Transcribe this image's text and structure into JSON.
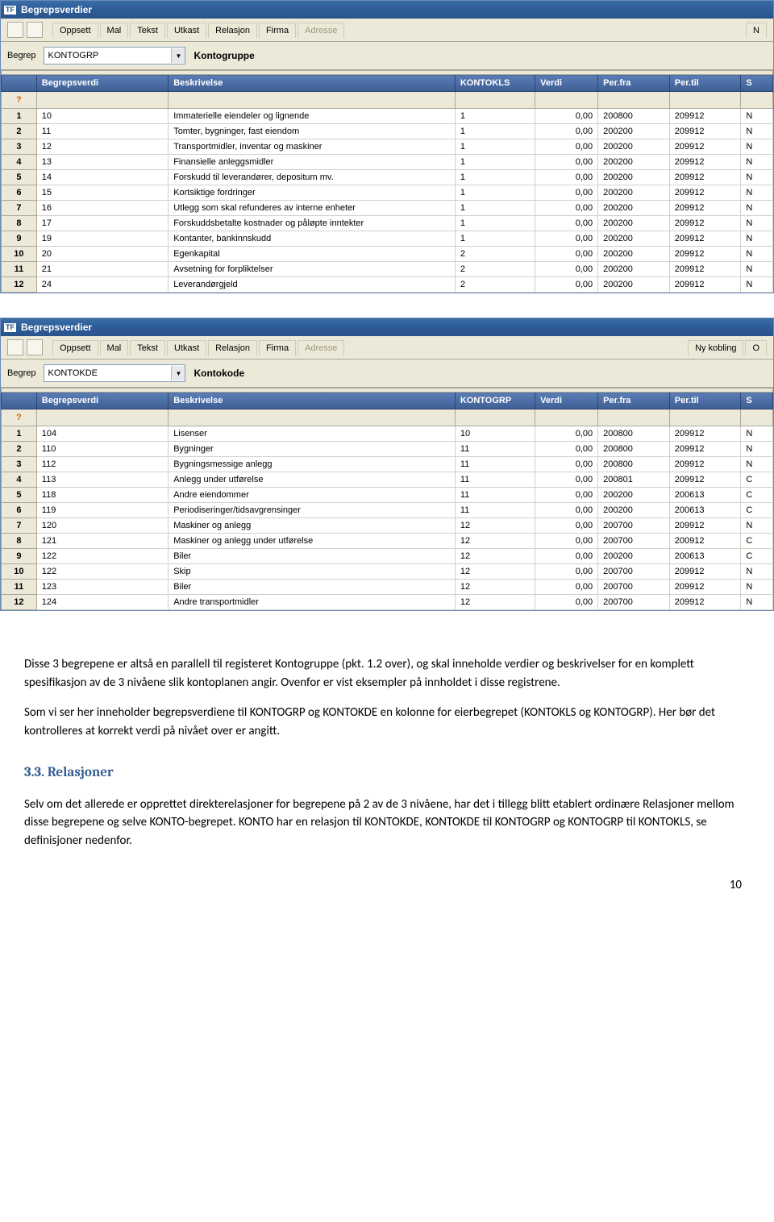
{
  "window1": {
    "title": "Begrepsverdier",
    "tabs": [
      "Oppsett",
      "Mal",
      "Tekst",
      "Utkast",
      "Relasjon",
      "Firma",
      "Adresse"
    ],
    "disabled_tab_index": 6,
    "right_partial": "N",
    "begrep_label": "Begrep",
    "begrep_value": "KONTOGRP",
    "begrep_desc": "Kontogruppe",
    "q_mark": "?",
    "ref_col": "KONTOKLS",
    "headers": [
      "Begrepsverdi",
      "Beskrivelse",
      "KONTOKLS",
      "Verdi",
      "Per.fra",
      "Per.til",
      "S"
    ],
    "rows": [
      {
        "n": "1",
        "bv": "10",
        "besk": "Immaterielle eiendeler og lignende",
        "ref": "1",
        "verdi": "0,00",
        "fra": "200800",
        "til": "209912",
        "s": "N"
      },
      {
        "n": "2",
        "bv": "11",
        "besk": "Tomter, bygninger, fast eiendom",
        "ref": "1",
        "verdi": "0,00",
        "fra": "200200",
        "til": "209912",
        "s": "N"
      },
      {
        "n": "3",
        "bv": "12",
        "besk": "Transportmidler, inventar og maskiner",
        "ref": "1",
        "verdi": "0,00",
        "fra": "200200",
        "til": "209912",
        "s": "N"
      },
      {
        "n": "4",
        "bv": "13",
        "besk": "Finansielle anleggsmidler",
        "ref": "1",
        "verdi": "0,00",
        "fra": "200200",
        "til": "209912",
        "s": "N"
      },
      {
        "n": "5",
        "bv": "14",
        "besk": "Forskudd til leverandører, depositum mv.",
        "ref": "1",
        "verdi": "0,00",
        "fra": "200200",
        "til": "209912",
        "s": "N"
      },
      {
        "n": "6",
        "bv": "15",
        "besk": "Kortsiktige fordringer",
        "ref": "1",
        "verdi": "0,00",
        "fra": "200200",
        "til": "209912",
        "s": "N"
      },
      {
        "n": "7",
        "bv": "16",
        "besk": "Utlegg som skal refunderes av interne enheter",
        "ref": "1",
        "verdi": "0,00",
        "fra": "200200",
        "til": "209912",
        "s": "N"
      },
      {
        "n": "8",
        "bv": "17",
        "besk": "Forskuddsbetalte kostnader og påløpte inntekter",
        "ref": "1",
        "verdi": "0,00",
        "fra": "200200",
        "til": "209912",
        "s": "N"
      },
      {
        "n": "9",
        "bv": "19",
        "besk": "Kontanter, bankinnskudd",
        "ref": "1",
        "verdi": "0,00",
        "fra": "200200",
        "til": "209912",
        "s": "N"
      },
      {
        "n": "10",
        "bv": "20",
        "besk": "Egenkapital",
        "ref": "2",
        "verdi": "0,00",
        "fra": "200200",
        "til": "209912",
        "s": "N"
      },
      {
        "n": "11",
        "bv": "21",
        "besk": "Avsetning for forpliktelser",
        "ref": "2",
        "verdi": "0,00",
        "fra": "200200",
        "til": "209912",
        "s": "N"
      },
      {
        "n": "12",
        "bv": "24",
        "besk": "Leverandørgjeld",
        "ref": "2",
        "verdi": "0,00",
        "fra": "200200",
        "til": "209912",
        "s": "N"
      }
    ]
  },
  "window2": {
    "title": "Begrepsverdier",
    "tabs": [
      "Oppsett",
      "Mal",
      "Tekst",
      "Utkast",
      "Relasjon",
      "Firma",
      "Adresse"
    ],
    "disabled_tab_index": 6,
    "right_tabs": [
      "Ny kobling",
      "O"
    ],
    "begrep_label": "Begrep",
    "begrep_value": "KONTOKDE",
    "begrep_desc": "Kontokode",
    "q_mark": "?",
    "ref_col": "KONTOGRP",
    "headers": [
      "Begrepsverdi",
      "Beskrivelse",
      "KONTOGRP",
      "Verdi",
      "Per.fra",
      "Per.til",
      "S"
    ],
    "rows": [
      {
        "n": "1",
        "bv": "104",
        "besk": "Lisenser",
        "ref": "10",
        "verdi": "0,00",
        "fra": "200800",
        "til": "209912",
        "s": "N"
      },
      {
        "n": "2",
        "bv": "110",
        "besk": "Bygninger",
        "ref": "11",
        "verdi": "0,00",
        "fra": "200800",
        "til": "209912",
        "s": "N"
      },
      {
        "n": "3",
        "bv": "112",
        "besk": "Bygningsmessige anlegg",
        "ref": "11",
        "verdi": "0,00",
        "fra": "200800",
        "til": "209912",
        "s": "N"
      },
      {
        "n": "4",
        "bv": "113",
        "besk": "Anlegg under utførelse",
        "ref": "11",
        "verdi": "0,00",
        "fra": "200801",
        "til": "209912",
        "s": "C"
      },
      {
        "n": "5",
        "bv": "118",
        "besk": "Andre eiendommer",
        "ref": "11",
        "verdi": "0,00",
        "fra": "200200",
        "til": "200613",
        "s": "C"
      },
      {
        "n": "6",
        "bv": "119",
        "besk": "Periodiseringer/tidsavgrensinger",
        "ref": "11",
        "verdi": "0,00",
        "fra": "200200",
        "til": "200613",
        "s": "C"
      },
      {
        "n": "7",
        "bv": "120",
        "besk": "Maskiner og anlegg",
        "ref": "12",
        "verdi": "0,00",
        "fra": "200700",
        "til": "209912",
        "s": "N"
      },
      {
        "n": "8",
        "bv": "121",
        "besk": "Maskiner og anlegg under utførelse",
        "ref": "12",
        "verdi": "0,00",
        "fra": "200700",
        "til": "200912",
        "s": "C"
      },
      {
        "n": "9",
        "bv": "122",
        "besk": "Biler",
        "ref": "12",
        "verdi": "0,00",
        "fra": "200200",
        "til": "200613",
        "s": "C"
      },
      {
        "n": "10",
        "bv": "122",
        "besk": "Skip",
        "ref": "12",
        "verdi": "0,00",
        "fra": "200700",
        "til": "209912",
        "s": "N"
      },
      {
        "n": "11",
        "bv": "123",
        "besk": "Biler",
        "ref": "12",
        "verdi": "0,00",
        "fra": "200700",
        "til": "209912",
        "s": "N"
      },
      {
        "n": "12",
        "bv": "124",
        "besk": "Andre transportmidler",
        "ref": "12",
        "verdi": "0,00",
        "fra": "200700",
        "til": "209912",
        "s": "N"
      }
    ]
  },
  "prose": {
    "p1": "Disse 3 begrepene er altså en parallell til registeret Kontogruppe (pkt. 1.2 over), og skal inneholde verdier og beskrivelser for en komplett spesifikasjon av de 3 nivåene slik kontoplanen angir. Ovenfor er vist eksempler på innholdet i disse registrene.",
    "p2": "Som vi ser her inneholder begrepsverdiene til KONTOGRP og KONTOKDE en kolonne for eierbegrepet (KONTOKLS og KONTOGRP). Her bør det kontrolleres at korrekt verdi på nivået over er angitt.",
    "h3": "3.3. Relasjoner",
    "p3": "Selv om det allerede er opprettet direkterelasjoner for begrepene på 2 av de 3 nivåene, har det i tillegg blitt etablert ordinære Relasjoner mellom disse begrepene og selve KONTO-begrepet.  KONTO har en relasjon til KONTOKDE, KONTOKDE til KONTOGRP og KONTOGRP til KONTOKLS, se definisjoner nedenfor."
  },
  "pagenum": "10"
}
